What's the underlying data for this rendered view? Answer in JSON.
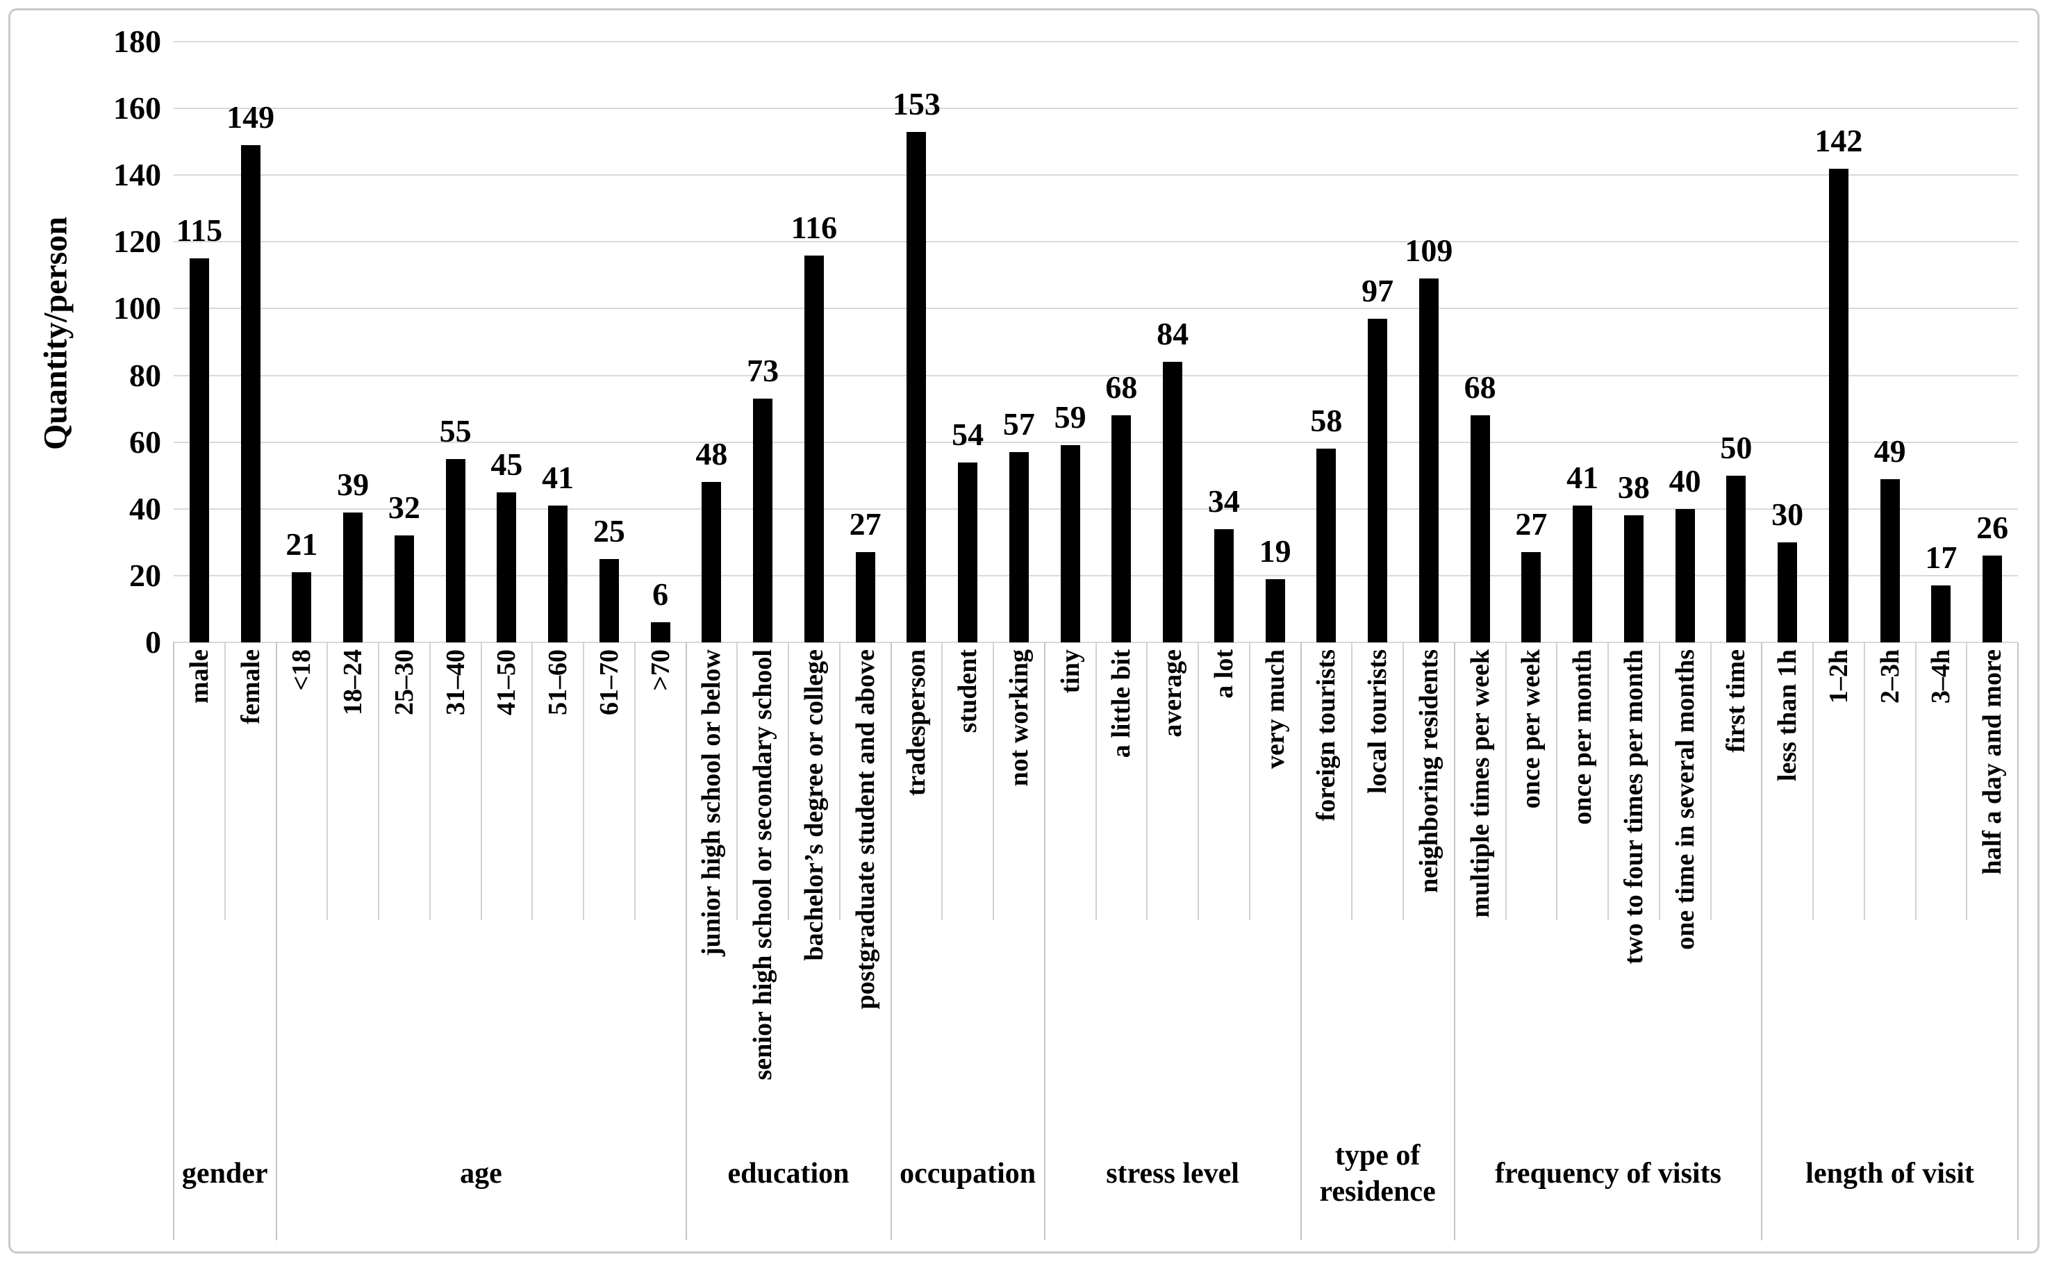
{
  "figure": {
    "background": "#ffffff",
    "frame_color": "#c9c9c9",
    "text_color": "#000000"
  },
  "chart_data": {
    "type": "bar",
    "title": "",
    "ylabel": "Quantity/person",
    "xlabel": "",
    "ylim": [
      0,
      180
    ],
    "ytick_step": 20,
    "yticks": [
      0,
      20,
      40,
      60,
      80,
      100,
      120,
      140,
      160,
      180
    ],
    "grid": "horizontal",
    "legend_position": "none",
    "bar_color": "#000000",
    "gridline_color": "#d9d9d9",
    "separator_color": "#d2d2d2",
    "group_separator_color": "#c4c4c4",
    "groups": [
      {
        "label": "gender",
        "categories": [
          "male",
          "female"
        ],
        "values": [
          115,
          149
        ]
      },
      {
        "label": "age",
        "categories": [
          "<18",
          "18–24",
          "25–30",
          "31–40",
          "41–50",
          "51–60",
          "61–70",
          ">70"
        ],
        "values": [
          21,
          39,
          32,
          55,
          45,
          41,
          25,
          6
        ]
      },
      {
        "label": "education",
        "categories": [
          "junior high school or below",
          "senior high school or secondary school",
          "bachelor’s degree or college",
          "postgraduate student and above"
        ],
        "values": [
          48,
          73,
          116,
          27
        ]
      },
      {
        "label": "occupation",
        "categories": [
          "tradesperson",
          "student",
          "not working"
        ],
        "values": [
          153,
          54,
          57
        ]
      },
      {
        "label": "stress level",
        "categories": [
          "tiny",
          "a little bit",
          "average",
          "a lot",
          "very much"
        ],
        "values": [
          59,
          68,
          84,
          34,
          19
        ]
      },
      {
        "label": "type of residence",
        "categories": [
          "foreign tourists",
          "local tourists",
          "neighboring residents"
        ],
        "values": [
          58,
          97,
          109
        ]
      },
      {
        "label": "frequency of visits",
        "categories": [
          "multiple times per week",
          "once per week",
          "once per month",
          "two to four times per month",
          "one time in several months",
          "first time"
        ],
        "values": [
          68,
          27,
          41,
          38,
          40,
          50
        ]
      },
      {
        "label": "length of visit",
        "categories": [
          "less than 1h",
          "1–2h",
          "2–3h",
          "3–4h",
          "half a day and more"
        ],
        "values": [
          30,
          142,
          49,
          17,
          26
        ]
      }
    ]
  }
}
